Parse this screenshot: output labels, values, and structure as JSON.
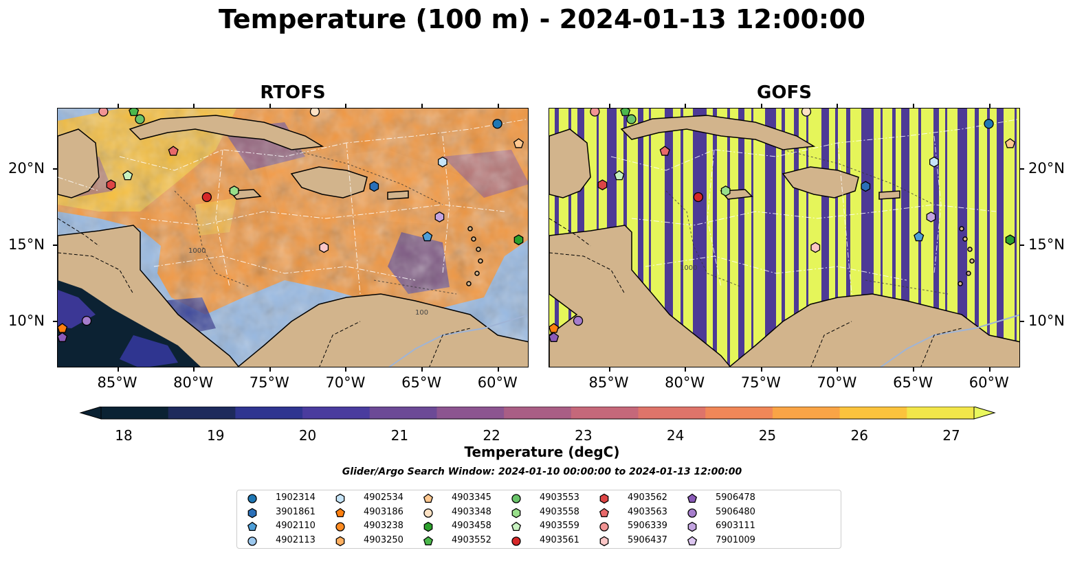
{
  "title": "Temperature (100 m) - 2024-01-13 12:00:00",
  "panels": [
    {
      "name": "RTOFS"
    },
    {
      "name": "GOFS"
    }
  ],
  "map": {
    "lon_range": [
      -89,
      -58
    ],
    "lat_range": [
      7,
      24
    ],
    "x_ticks": [
      "85°W",
      "80°W",
      "75°W",
      "70°W",
      "65°W",
      "60°W"
    ],
    "y_ticks": [
      "20°N",
      "15°N",
      "10°N"
    ],
    "contour_labels": [
      "100",
      "1000"
    ]
  },
  "colorbar": {
    "label": "Temperature (degC)",
    "min": 18,
    "max": 27,
    "ticks": [
      "18",
      "19",
      "20",
      "21",
      "22",
      "23",
      "24",
      "25",
      "26",
      "27"
    ],
    "extend": "both",
    "colormap_stops": [
      "#0a2233",
      "#1d2a5c",
      "#2f3590",
      "#4a3c9e",
      "#6c4a96",
      "#8c5590",
      "#a95e85",
      "#c5687a",
      "#de746a",
      "#f08758",
      "#f9a446",
      "#fbc33d",
      "#f2e64a",
      "#e9f75d"
    ]
  },
  "search_window": "Glider/Argo Search Window: 2024-01-10 00:00:00 to 2024-01-13 12:00:00",
  "legend": [
    {
      "id": "1902314",
      "marker": "circle",
      "color": "#1f77b4"
    },
    {
      "id": "3901861",
      "marker": "hexagon",
      "color": "#2a6fb8"
    },
    {
      "id": "4902110",
      "marker": "pentagon",
      "color": "#4e9fd8"
    },
    {
      "id": "4902113",
      "marker": "circle",
      "color": "#9cc8ee"
    },
    {
      "id": "4902534",
      "marker": "hexagon",
      "color": "#c6e4f7"
    },
    {
      "id": "4903186",
      "marker": "pentagon",
      "color": "#ff7f0e"
    },
    {
      "id": "4903238",
      "marker": "circle",
      "color": "#ff8c22"
    },
    {
      "id": "4903250",
      "marker": "hexagon",
      "color": "#ffb061"
    },
    {
      "id": "4903345",
      "marker": "pentagon",
      "color": "#ffc890"
    },
    {
      "id": "4903348",
      "marker": "circle",
      "color": "#fde2c4"
    },
    {
      "id": "4903458",
      "marker": "hexagon",
      "color": "#2ca02c"
    },
    {
      "id": "4903552",
      "marker": "pentagon",
      "color": "#4cb84c"
    },
    {
      "id": "4903553",
      "marker": "circle",
      "color": "#6ac46a"
    },
    {
      "id": "4903558",
      "marker": "hexagon",
      "color": "#98df8a"
    },
    {
      "id": "4903559",
      "marker": "pentagon",
      "color": "#c8f2c0"
    },
    {
      "id": "4903561",
      "marker": "circle",
      "color": "#d62728"
    },
    {
      "id": "4903562",
      "marker": "hexagon",
      "color": "#dd4545"
    },
    {
      "id": "4903563",
      "marker": "pentagon",
      "color": "#e8696a"
    },
    {
      "id": "5906339",
      "marker": "circle",
      "color": "#f19494"
    },
    {
      "id": "5906437",
      "marker": "hexagon",
      "color": "#fbc6c6"
    },
    {
      "id": "5906478",
      "marker": "pentagon",
      "color": "#8a5bb8"
    },
    {
      "id": "5906480",
      "marker": "circle",
      "color": "#a67dcc"
    },
    {
      "id": "6903111",
      "marker": "hexagon",
      "color": "#c3a4e0"
    },
    {
      "id": "7901009",
      "marker": "pentagon",
      "color": "#dcc6f0"
    }
  ],
  "floats": [
    {
      "id": "1902314",
      "lon": -60.1,
      "lat": 23.0
    },
    {
      "id": "3901861",
      "lon": -68.2,
      "lat": 18.9
    },
    {
      "id": "4902110",
      "lon": -64.7,
      "lat": 15.6
    },
    {
      "id": "4902534",
      "lon": -63.7,
      "lat": 20.5
    },
    {
      "id": "4903186",
      "lon": -88.7,
      "lat": 9.6
    },
    {
      "id": "4903345",
      "lon": -58.7,
      "lat": 21.7
    },
    {
      "id": "4903348",
      "lon": -72.1,
      "lat": 23.8
    },
    {
      "id": "4903458",
      "lon": -58.7,
      "lat": 15.4
    },
    {
      "id": "4903552",
      "lon": -84.0,
      "lat": 23.8
    },
    {
      "id": "4903553",
      "lon": -83.6,
      "lat": 23.3
    },
    {
      "id": "4903558",
      "lon": -77.4,
      "lat": 18.6
    },
    {
      "id": "4903559",
      "lon": -84.4,
      "lat": 19.6
    },
    {
      "id": "4903561",
      "lon": -79.2,
      "lat": 18.2
    },
    {
      "id": "4903562",
      "lon": -85.5,
      "lat": 19.0
    },
    {
      "id": "4903563",
      "lon": -81.4,
      "lat": 21.2
    },
    {
      "id": "5906339",
      "lon": -86.0,
      "lat": 23.8
    },
    {
      "id": "5906437",
      "lon": -71.5,
      "lat": 14.9
    },
    {
      "id": "5906478",
      "lon": -88.7,
      "lat": 9.0
    },
    {
      "id": "5906480",
      "lon": -87.1,
      "lat": 10.1
    },
    {
      "id": "6903111",
      "lon": -63.9,
      "lat": 16.9
    }
  ]
}
